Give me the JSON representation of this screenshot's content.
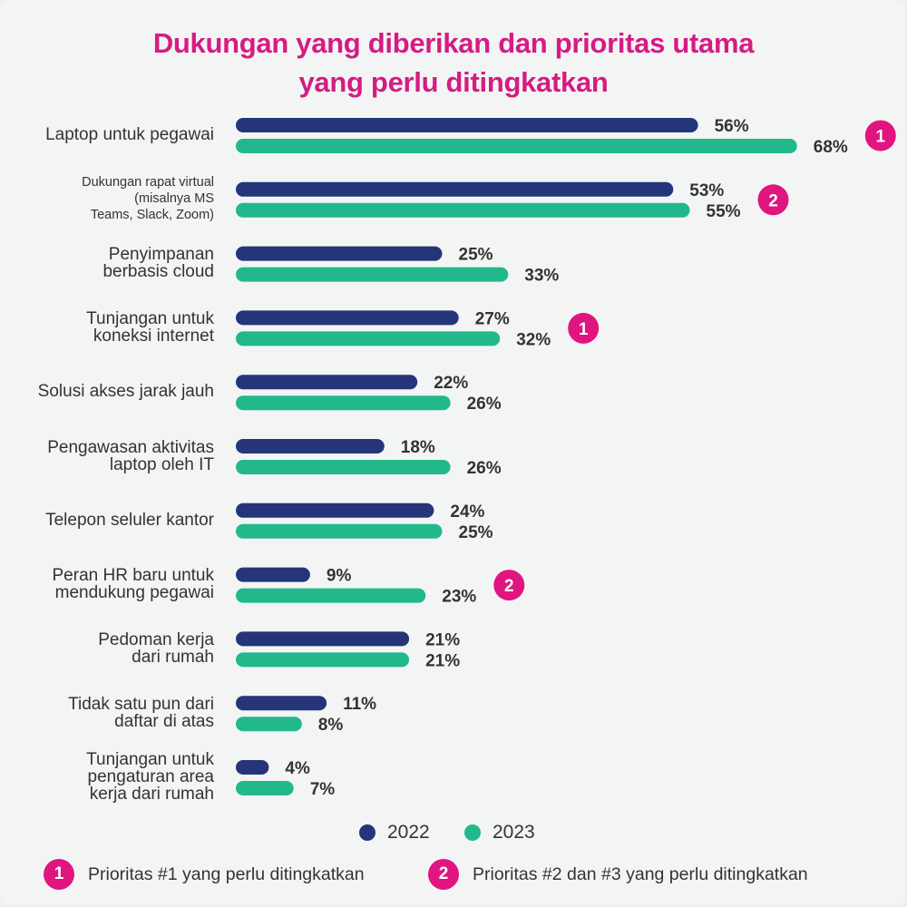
{
  "title_line1": "Dukungan yang diberikan dan prioritas utama",
  "title_line2": "yang perlu ditingkatkan",
  "colors": {
    "series_2022": "#24357a",
    "series_2023": "#22b88c",
    "accent": "#e0157f",
    "title": "#d61b82"
  },
  "chart_data": {
    "type": "bar",
    "orientation": "horizontal",
    "title": "Dukungan yang diberikan dan prioritas utama yang perlu ditingkatkan",
    "value_suffix": "%",
    "xlim": [
      0,
      70
    ],
    "grid": false,
    "legend_position": "bottom",
    "categories": [
      {
        "lines": [
          "Laptop untuk pegawai"
        ],
        "small": false,
        "priority": "1"
      },
      {
        "lines": [
          "Dukungan rapat virtual",
          "(misalnya MS",
          "Teams, Slack, Zoom)"
        ],
        "small": true,
        "priority": "2"
      },
      {
        "lines": [
          "Penyimpanan",
          "berbasis cloud"
        ],
        "small": false,
        "priority": ""
      },
      {
        "lines": [
          "Tunjangan untuk",
          "koneksi internet"
        ],
        "small": false,
        "priority": "1"
      },
      {
        "lines": [
          "Solusi akses jarak jauh"
        ],
        "small": false,
        "priority": ""
      },
      {
        "lines": [
          "Pengawasan aktivitas",
          "laptop oleh IT"
        ],
        "small": false,
        "priority": ""
      },
      {
        "lines": [
          "Telepon seluler kantor"
        ],
        "small": false,
        "priority": ""
      },
      {
        "lines": [
          "Peran HR baru untuk",
          "mendukung pegawai"
        ],
        "small": false,
        "priority": "2"
      },
      {
        "lines": [
          "Pedoman kerja",
          "dari rumah"
        ],
        "small": false,
        "priority": ""
      },
      {
        "lines": [
          "Tidak satu pun dari",
          "daftar di atas"
        ],
        "small": false,
        "priority": ""
      },
      {
        "lines": [
          "Tunjangan untuk",
          "pengaturan area",
          "kerja dari rumah"
        ],
        "small": false,
        "priority": ""
      }
    ],
    "series": [
      {
        "name": "2022",
        "values": [
          56,
          53,
          25,
          27,
          22,
          18,
          24,
          9,
          21,
          11,
          4
        ]
      },
      {
        "name": "2023",
        "values": [
          68,
          55,
          33,
          32,
          26,
          26,
          25,
          23,
          21,
          8,
          7
        ]
      }
    ]
  },
  "legend": [
    {
      "label": "2022",
      "color": "#24357a"
    },
    {
      "label": "2023",
      "color": "#22b88c"
    }
  ],
  "footnotes": [
    {
      "badge": "1",
      "text": "Prioritas #1 yang perlu ditingkatkan"
    },
    {
      "badge": "2",
      "text": "Prioritas #2 dan #3 yang perlu ditingkatkan"
    }
  ]
}
